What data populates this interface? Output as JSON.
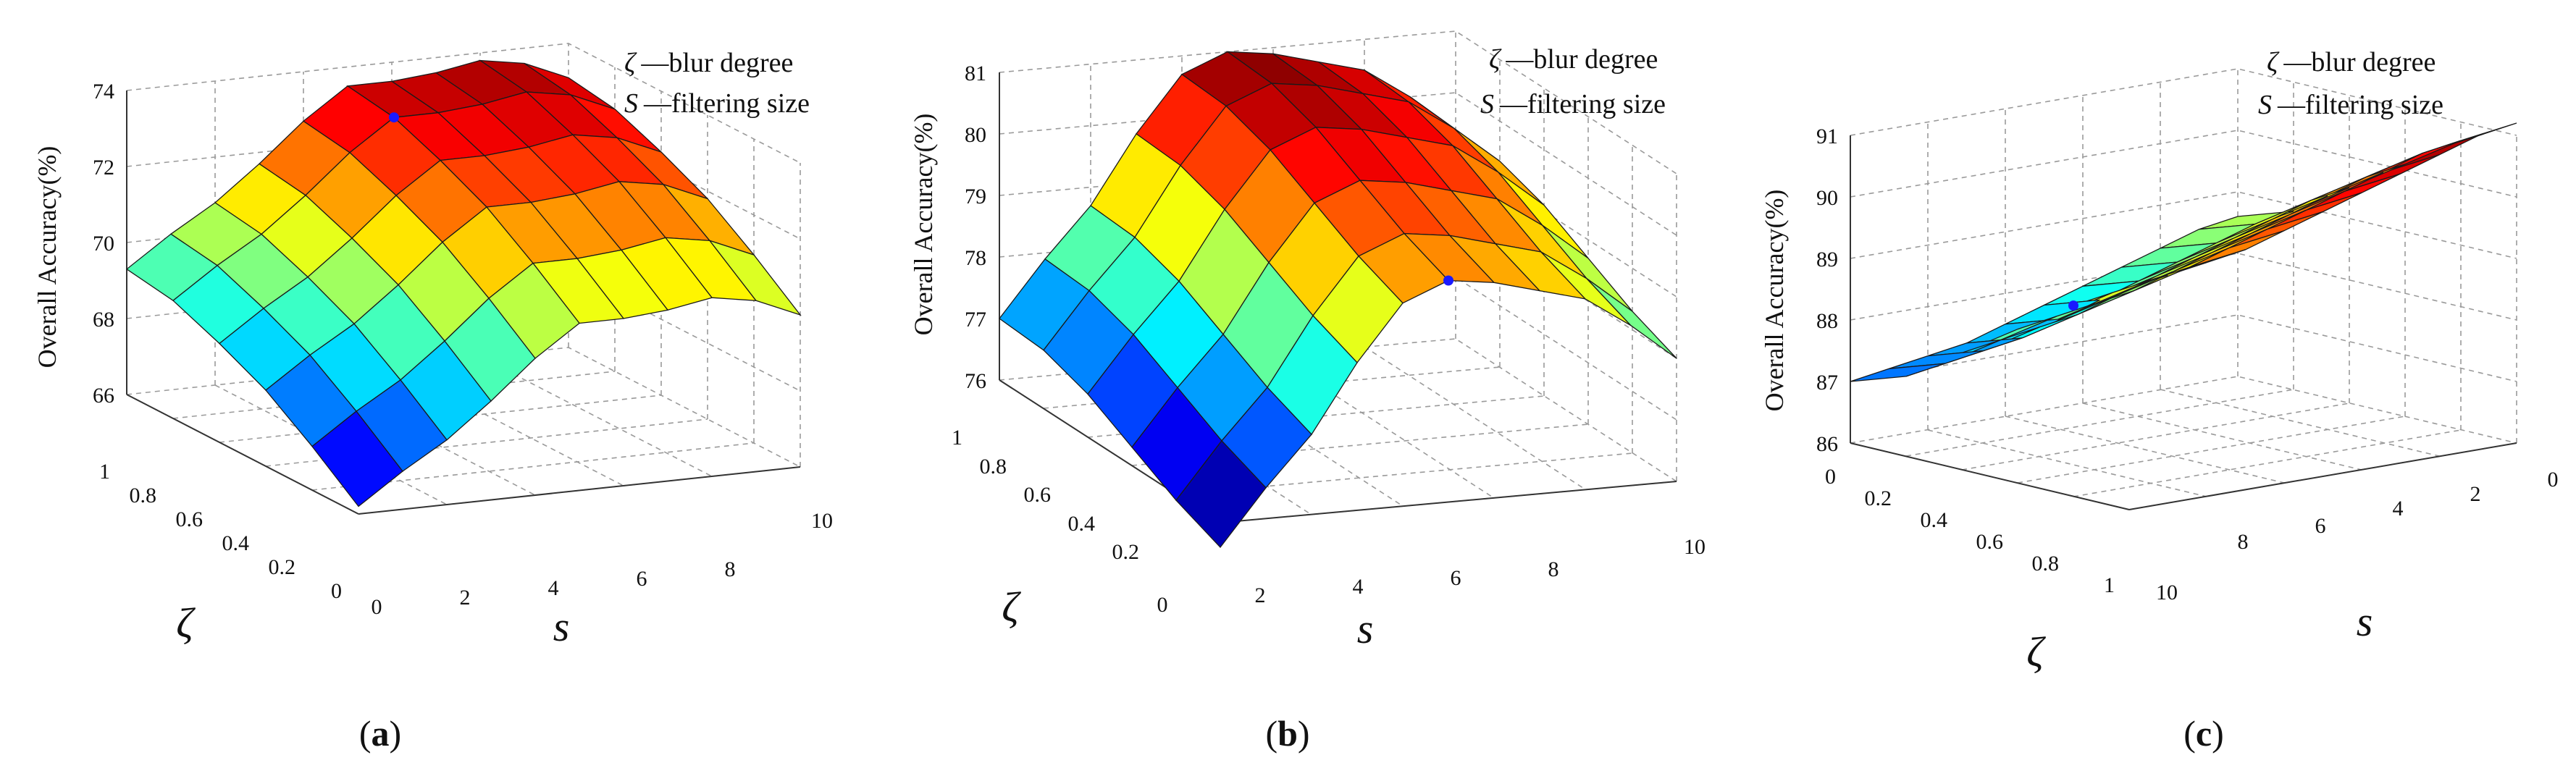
{
  "colors": {
    "colormap": [
      "#00008f",
      "#0000ff",
      "#0080ff",
      "#00ffff",
      "#80ff80",
      "#ffff00",
      "#ff8000",
      "#ff0000",
      "#800000"
    ],
    "marker": "#1a1aff",
    "grid": "#9a9a9a"
  },
  "chart_data": [
    {
      "type": "surface3d",
      "ylabel": "Overall Accuracy(%)",
      "zeta_label": "ζ",
      "s_label": "s",
      "legend": {
        "zeta_sym": "ζ",
        "zeta_text": "—blur degree",
        "s_sym": "S",
        "s_text": "—filtering size"
      },
      "caption": {
        "open": "(",
        "letter": "a",
        "close": ")"
      },
      "zeta_ticks": [
        "0",
        "0.2",
        "0.4",
        "0.6",
        "0.8",
        "1"
      ],
      "s_ticks": [
        "0",
        "2",
        "4",
        "6",
        "8",
        "10"
      ],
      "z_ticks": [
        "66",
        "68",
        "70",
        "72",
        "74"
      ],
      "zlim": [
        66,
        74
      ],
      "zeta": [
        0,
        0.2,
        0.4,
        0.6,
        0.8,
        1
      ],
      "s": [
        0,
        1,
        2,
        3,
        4,
        5,
        6,
        7,
        8,
        9,
        10
      ],
      "z_profile_s": [
        66.2,
        67.0,
        67.7,
        68.6,
        69.6,
        70.4,
        70.4,
        70.5,
        70.7,
        70.5,
        70.0
      ],
      "zeta_gain": [
        0.0,
        0.95,
        1.8,
        2.4,
        2.9,
        3.1
      ],
      "best_point": {
        "zeta": 0.8,
        "s": 5
      }
    },
    {
      "type": "surface3d",
      "ylabel": "Overall Accuracy(%)",
      "zeta_label": "ζ",
      "s_label": "s",
      "legend": {
        "zeta_sym": "ζ",
        "zeta_text": "—blur degree",
        "s_sym": "S",
        "s_text": "—filtering size"
      },
      "caption": {
        "open": "(",
        "letter": "b",
        "close": ")"
      },
      "zeta_ticks": [
        "0.2",
        "0.4",
        "0.6",
        "0.8",
        "1"
      ],
      "s_ticks": [
        "0",
        "2",
        "4",
        "6",
        "8",
        "10"
      ],
      "z_ticks": [
        "76",
        "77",
        "78",
        "79",
        "80",
        "81"
      ],
      "zlim": [
        76,
        81
      ],
      "zeta": [
        0,
        0.2,
        0.4,
        0.6,
        0.8,
        1
      ],
      "s": [
        0,
        1,
        2,
        3,
        4,
        5,
        6,
        7,
        8,
        9,
        10
      ],
      "z_profile_s": [
        75.6,
        76.5,
        77.3,
        78.4,
        79.3,
        79.6,
        79.5,
        79.3,
        79.1,
        78.6,
        78.0
      ],
      "zeta_gain": [
        0.0,
        0.3,
        0.7,
        1.1,
        1.35,
        1.4
      ],
      "best_point": {
        "zeta": 0.0,
        "s": 5
      }
    },
    {
      "type": "surface3d",
      "ylabel": "Overall Accuracy(%)",
      "zeta_label": "ζ",
      "s_label": "s",
      "legend": {
        "zeta_sym": "ζ",
        "zeta_text": "—blur degree",
        "s_sym": "S",
        "s_text": "—filtering size"
      },
      "caption": {
        "open": "(",
        "letter": "c",
        "close": ")"
      },
      "zeta_ticks": [
        "0",
        "0.2",
        "0.4",
        "0.6",
        "0.8",
        "1"
      ],
      "s_ticks": [
        "0",
        "2",
        "4",
        "6",
        "8",
        "10"
      ],
      "z_ticks": [
        "86",
        "87",
        "88",
        "89",
        "90",
        "91"
      ],
      "zlim": [
        86,
        91
      ],
      "zeta": [
        0,
        0.2,
        0.4,
        0.6,
        0.8,
        1
      ],
      "s": [
        0,
        1,
        2,
        3,
        4,
        5,
        6,
        7,
        8,
        9,
        10
      ],
      "z_profile_s": [
        88.6,
        88.5,
        88.3,
        88.1,
        87.9,
        87.7,
        87.5,
        87.3,
        87.2,
        87.1,
        87.0
      ],
      "zeta_gain": [
        0.0,
        0.3,
        0.9,
        1.5,
        2.1,
        2.6
      ],
      "best_point": {
        "zeta": 0.8,
        "s": 10
      }
    }
  ]
}
